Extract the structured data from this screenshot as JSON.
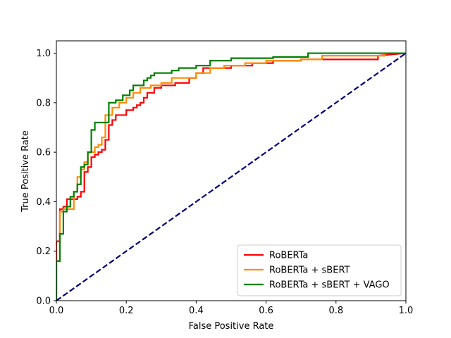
{
  "chart_data": {
    "type": "line",
    "title": "",
    "xlabel": "False Positive Rate",
    "ylabel": "True Positive Rate",
    "xlim": [
      0.0,
      1.0
    ],
    "ylim": [
      0.0,
      1.05
    ],
    "xticks": [
      "0.0",
      "0.2",
      "0.4",
      "0.6",
      "0.8",
      "1.0"
    ],
    "yticks": [
      "0.0",
      "0.2",
      "0.4",
      "0.6",
      "0.8",
      "1.0"
    ],
    "xtick_values": [
      0.0,
      0.2,
      0.4,
      0.6,
      0.8,
      1.0
    ],
    "ytick_values": [
      0.0,
      0.2,
      0.4,
      0.6,
      0.8,
      1.0
    ],
    "grid": false,
    "legend_position": "lower-right",
    "diagonal": {
      "x": [
        0,
        1
      ],
      "y": [
        0,
        1
      ],
      "color": "#000080",
      "style": "dashed"
    },
    "series": [
      {
        "name": "RoBERTa",
        "color": "#ff0000",
        "x": [
          0,
          0,
          0.01,
          0.01,
          0.02,
          0.02,
          0.03,
          0.03,
          0.04,
          0.04,
          0.05,
          0.05,
          0.06,
          0.06,
          0.07,
          0.07,
          0.08,
          0.08,
          0.09,
          0.09,
          0.1,
          0.1,
          0.11,
          0.11,
          0.12,
          0.12,
          0.13,
          0.13,
          0.14,
          0.14,
          0.15,
          0.15,
          0.16,
          0.16,
          0.17,
          0.17,
          0.2,
          0.2,
          0.22,
          0.22,
          0.23,
          0.23,
          0.24,
          0.24,
          0.25,
          0.25,
          0.26,
          0.26,
          0.28,
          0.28,
          0.3,
          0.3,
          0.34,
          0.34,
          0.38,
          0.38,
          0.4,
          0.4,
          0.42,
          0.42,
          0.5,
          0.5,
          0.56,
          0.56,
          0.62,
          0.62,
          0.7,
          0.7,
          0.92,
          0.92,
          1.0
        ],
        "y": [
          0,
          0.24,
          0.24,
          0.37,
          0.37,
          0.38,
          0.38,
          0.41,
          0.41,
          0.41,
          0.41,
          0.41,
          0.41,
          0.42,
          0.42,
          0.44,
          0.44,
          0.52,
          0.52,
          0.54,
          0.54,
          0.58,
          0.58,
          0.59,
          0.59,
          0.6,
          0.6,
          0.61,
          0.61,
          0.65,
          0.65,
          0.71,
          0.71,
          0.73,
          0.73,
          0.75,
          0.75,
          0.77,
          0.77,
          0.78,
          0.78,
          0.79,
          0.79,
          0.8,
          0.8,
          0.82,
          0.82,
          0.84,
          0.84,
          0.86,
          0.86,
          0.87,
          0.87,
          0.88,
          0.88,
          0.9,
          0.9,
          0.92,
          0.92,
          0.94,
          0.94,
          0.95,
          0.95,
          0.96,
          0.96,
          0.97,
          0.97,
          0.975,
          0.975,
          0.99,
          1.0
        ]
      },
      {
        "name": "RoBERTa + sBERT",
        "color": "#ff8c00",
        "x": [
          0,
          0,
          0.01,
          0.01,
          0.02,
          0.02,
          0.03,
          0.03,
          0.04,
          0.04,
          0.05,
          0.05,
          0.06,
          0.06,
          0.07,
          0.07,
          0.08,
          0.08,
          0.09,
          0.09,
          0.1,
          0.1,
          0.11,
          0.11,
          0.12,
          0.12,
          0.13,
          0.13,
          0.14,
          0.14,
          0.16,
          0.16,
          0.18,
          0.18,
          0.2,
          0.2,
          0.22,
          0.22,
          0.24,
          0.24,
          0.27,
          0.27,
          0.3,
          0.3,
          0.33,
          0.33,
          0.4,
          0.4,
          0.44,
          0.44,
          0.48,
          0.48,
          0.54,
          0.54,
          0.6,
          0.6,
          0.7,
          0.7,
          0.76,
          0.76,
          0.94,
          0.94,
          1.0
        ],
        "y": [
          0,
          0.16,
          0.16,
          0.36,
          0.36,
          0.37,
          0.37,
          0.37,
          0.37,
          0.37,
          0.37,
          0.44,
          0.44,
          0.5,
          0.5,
          0.53,
          0.53,
          0.56,
          0.56,
          0.6,
          0.6,
          0.6,
          0.6,
          0.62,
          0.62,
          0.63,
          0.63,
          0.66,
          0.66,
          0.75,
          0.75,
          0.78,
          0.78,
          0.8,
          0.8,
          0.82,
          0.82,
          0.84,
          0.84,
          0.86,
          0.86,
          0.87,
          0.87,
          0.88,
          0.88,
          0.9,
          0.9,
          0.92,
          0.92,
          0.94,
          0.94,
          0.95,
          0.95,
          0.96,
          0.96,
          0.97,
          0.97,
          0.975,
          0.975,
          0.99,
          0.99,
          1.0,
          1.0
        ]
      },
      {
        "name": "RoBERTa + sBERT + VAGO",
        "color": "#008000",
        "x": [
          0,
          0,
          0.01,
          0.01,
          0.02,
          0.02,
          0.03,
          0.03,
          0.04,
          0.04,
          0.05,
          0.05,
          0.06,
          0.06,
          0.07,
          0.07,
          0.08,
          0.08,
          0.09,
          0.09,
          0.1,
          0.1,
          0.11,
          0.11,
          0.13,
          0.13,
          0.15,
          0.15,
          0.16,
          0.16,
          0.17,
          0.17,
          0.18,
          0.18,
          0.19,
          0.19,
          0.21,
          0.21,
          0.22,
          0.22,
          0.23,
          0.23,
          0.25,
          0.25,
          0.26,
          0.26,
          0.27,
          0.27,
          0.28,
          0.28,
          0.33,
          0.33,
          0.35,
          0.35,
          0.4,
          0.4,
          0.44,
          0.44,
          0.5,
          0.5,
          0.62,
          0.62,
          0.72,
          0.72,
          0.94,
          0.94,
          1.0
        ],
        "y": [
          0,
          0.16,
          0.16,
          0.27,
          0.27,
          0.36,
          0.36,
          0.38,
          0.38,
          0.42,
          0.42,
          0.44,
          0.44,
          0.47,
          0.47,
          0.54,
          0.54,
          0.55,
          0.55,
          0.6,
          0.6,
          0.69,
          0.69,
          0.72,
          0.72,
          0.72,
          0.72,
          0.8,
          0.8,
          0.8,
          0.8,
          0.81,
          0.81,
          0.81,
          0.81,
          0.83,
          0.83,
          0.85,
          0.85,
          0.87,
          0.87,
          0.87,
          0.87,
          0.89,
          0.89,
          0.9,
          0.9,
          0.91,
          0.91,
          0.92,
          0.92,
          0.93,
          0.93,
          0.94,
          0.94,
          0.95,
          0.95,
          0.97,
          0.97,
          0.98,
          0.98,
          0.985,
          0.985,
          1.0,
          1.0,
          1.0,
          1.0
        ]
      }
    ]
  }
}
